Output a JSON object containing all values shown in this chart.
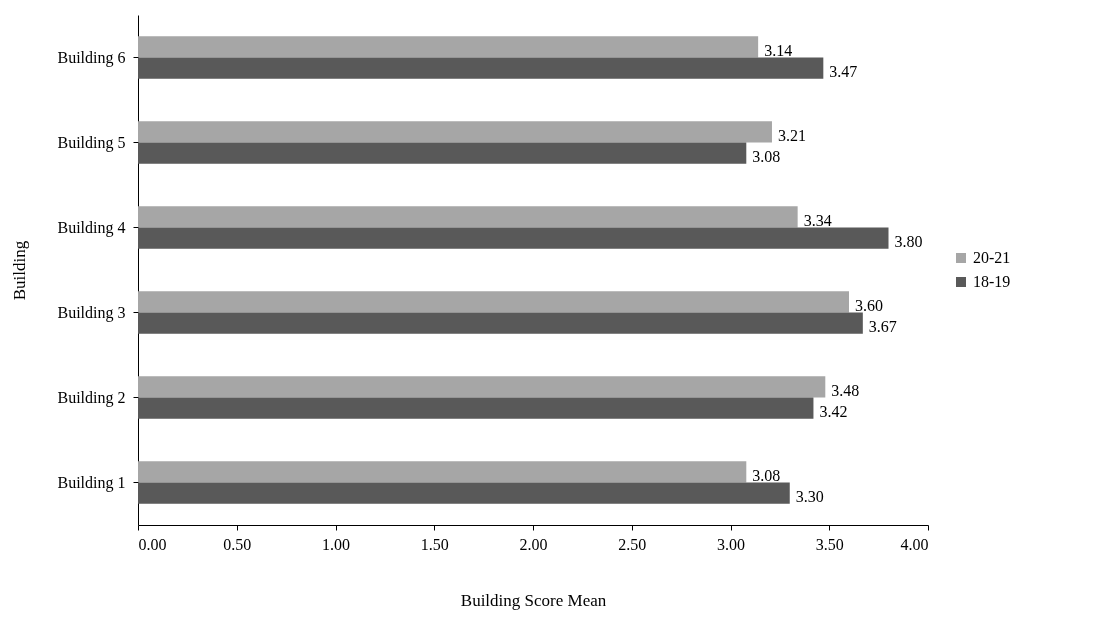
{
  "chart_data": {
    "type": "bar",
    "orientation": "horizontal",
    "xlabel": "Building Score Mean",
    "ylabel": "Building",
    "categories": [
      "Building 6",
      "Building 5",
      "Building 4",
      "Building 3",
      "Building 2",
      "Building 1"
    ],
    "series": [
      {
        "name": "20-21",
        "color": "#a6a6a6",
        "values": [
          3.14,
          3.21,
          3.34,
          3.6,
          3.48,
          3.08
        ],
        "value_labels": [
          "3.14",
          "3.21",
          "3.34",
          "3.60",
          "3.48",
          "3.08"
        ]
      },
      {
        "name": "18-19",
        "color": "#595959",
        "values": [
          3.47,
          3.08,
          3.8,
          3.67,
          3.42,
          3.3
        ],
        "value_labels": [
          "3.47",
          "3.08",
          "3.80",
          "3.67",
          "3.42",
          "3.30"
        ]
      }
    ],
    "xlim": [
      0,
      4
    ],
    "xticks": [
      {
        "value": 0,
        "label": "0.00"
      },
      {
        "value": 0.5,
        "label": "0.50"
      },
      {
        "value": 1,
        "label": "1.00"
      },
      {
        "value": 1.5,
        "label": "1.50"
      },
      {
        "value": 2,
        "label": "2.00"
      },
      {
        "value": 2.5,
        "label": "2.50"
      },
      {
        "value": 3,
        "label": "3.00"
      },
      {
        "value": 3.5,
        "label": "3.50"
      },
      {
        "value": 4,
        "label": "4.00"
      }
    ],
    "grid": false,
    "legend": "right"
  }
}
